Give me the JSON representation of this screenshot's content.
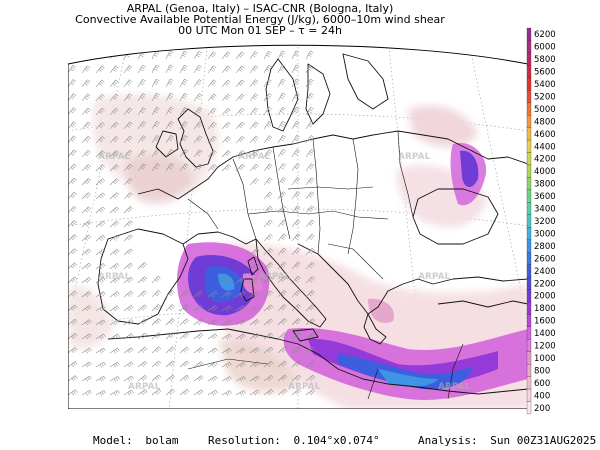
{
  "header": {
    "line1": "ARPAL (Genoa, Italy)  –  ISAC-CNR (Bologna, Italy)",
    "line2": "Convective Available Potential Energy (J/kg), 6000–10m wind shear",
    "line3": "00 UTC Mon 01 SEP  –  τ = 24h"
  },
  "footer": {
    "model_label": "Model:",
    "model_value": "bolam",
    "resolution_label": "Resolution:",
    "resolution_value": "0.104°x0.074°",
    "analysis_label": "Analysis:",
    "analysis_value": "Sun 00Z31AUG2025"
  },
  "watermark": "ARPAL",
  "colorbar": {
    "labels": [
      "200",
      "400",
      "600",
      "800",
      "1000",
      "1200",
      "1400",
      "1600",
      "1800",
      "2000",
      "2200",
      "2400",
      "2600",
      "2800",
      "3000",
      "3200",
      "3400",
      "3600",
      "3800",
      "4000",
      "4200",
      "4400",
      "4600",
      "4800",
      "5000",
      "5200",
      "5400",
      "5600",
      "5800",
      "6000",
      "6200"
    ],
    "colors": [
      "#f7e9e9",
      "#f2d6d9",
      "#ecc2ca",
      "#e5adbd",
      "#e19ac6",
      "#dc80d2",
      "#d466dc",
      "#b847dc",
      "#953ad8",
      "#6f3dd6",
      "#5149d8",
      "#3e5ee0",
      "#3a79e6",
      "#3f94e6",
      "#46aedb",
      "#4fc3c4",
      "#5ccfa6",
      "#6fd387",
      "#8fd36b",
      "#b0d65a",
      "#cfd853",
      "#e6d24e",
      "#f0bb46",
      "#f29a3e",
      "#ef7538",
      "#e84f35",
      "#dc3335",
      "#cc2a48",
      "#bd2864",
      "#ad2a80",
      "#9a2b94"
    ]
  }
}
